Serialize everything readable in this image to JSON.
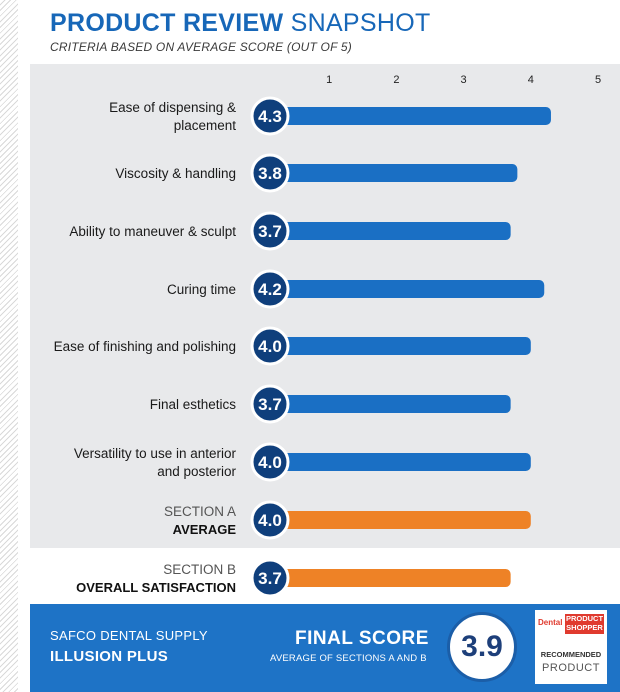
{
  "header": {
    "title_bold": "PRODUCT REVIEW",
    "title_light": "SNAPSHOT",
    "subtitle": "CRITERIA BASED ON AVERAGE SCORE (OUT OF 5)"
  },
  "chart_data": {
    "type": "bar",
    "orientation": "horizontal",
    "title": "PRODUCT REVIEW SNAPSHOT",
    "subtitle": "CRITERIA BASED ON AVERAGE SCORE (OUT OF 5)",
    "xlim": [
      0,
      5
    ],
    "ticks": [
      "1",
      "2",
      "3",
      "4",
      "5"
    ],
    "grid": false,
    "colors": {
      "criteria": "#1a6fc4",
      "summary": "#ee8226",
      "circle_fill": "#0f3f7c"
    },
    "rows": [
      {
        "label": [
          "Ease of dispensing &",
          "placement"
        ],
        "value": 4.3,
        "display": "4.3",
        "kind": "criteria"
      },
      {
        "label": [
          "Viscosity & handling"
        ],
        "value": 3.8,
        "display": "3.8",
        "kind": "criteria"
      },
      {
        "label": [
          "Ability to maneuver & sculpt"
        ],
        "value": 3.7,
        "display": "3.7",
        "kind": "criteria"
      },
      {
        "label": [
          "Curing time"
        ],
        "value": 4.2,
        "display": "4.2",
        "kind": "criteria"
      },
      {
        "label": [
          "Ease of finishing and polishing"
        ],
        "value": 4.0,
        "display": "4.0",
        "kind": "criteria"
      },
      {
        "label": [
          "Final esthetics"
        ],
        "value": 3.7,
        "display": "3.7",
        "kind": "criteria"
      },
      {
        "label": [
          "Versatility to use in anterior",
          "and posterior"
        ],
        "value": 4.0,
        "display": "4.0",
        "kind": "criteria"
      },
      {
        "label": [
          "SECTION A",
          "AVERAGE"
        ],
        "value": 4.0,
        "display": "4.0",
        "kind": "summary"
      },
      {
        "label": [
          "SECTION B",
          "OVERALL SATISFACTION"
        ],
        "value": 3.7,
        "display": "3.7",
        "kind": "summary"
      }
    ]
  },
  "footer": {
    "brand": "SAFCO DENTAL SUPPLY",
    "product": "ILLUSION PLUS",
    "final_label": "FINAL SCORE",
    "final_sub": "AVERAGE OF SECTIONS A AND B",
    "final_score": "3.9",
    "badge": {
      "dental": "Dental",
      "product_shopper_line1": "PRODUCT",
      "product_shopper_line2": "SHOPPER",
      "recommended": "RECOMMENDED",
      "product": "PRODUCT"
    }
  }
}
